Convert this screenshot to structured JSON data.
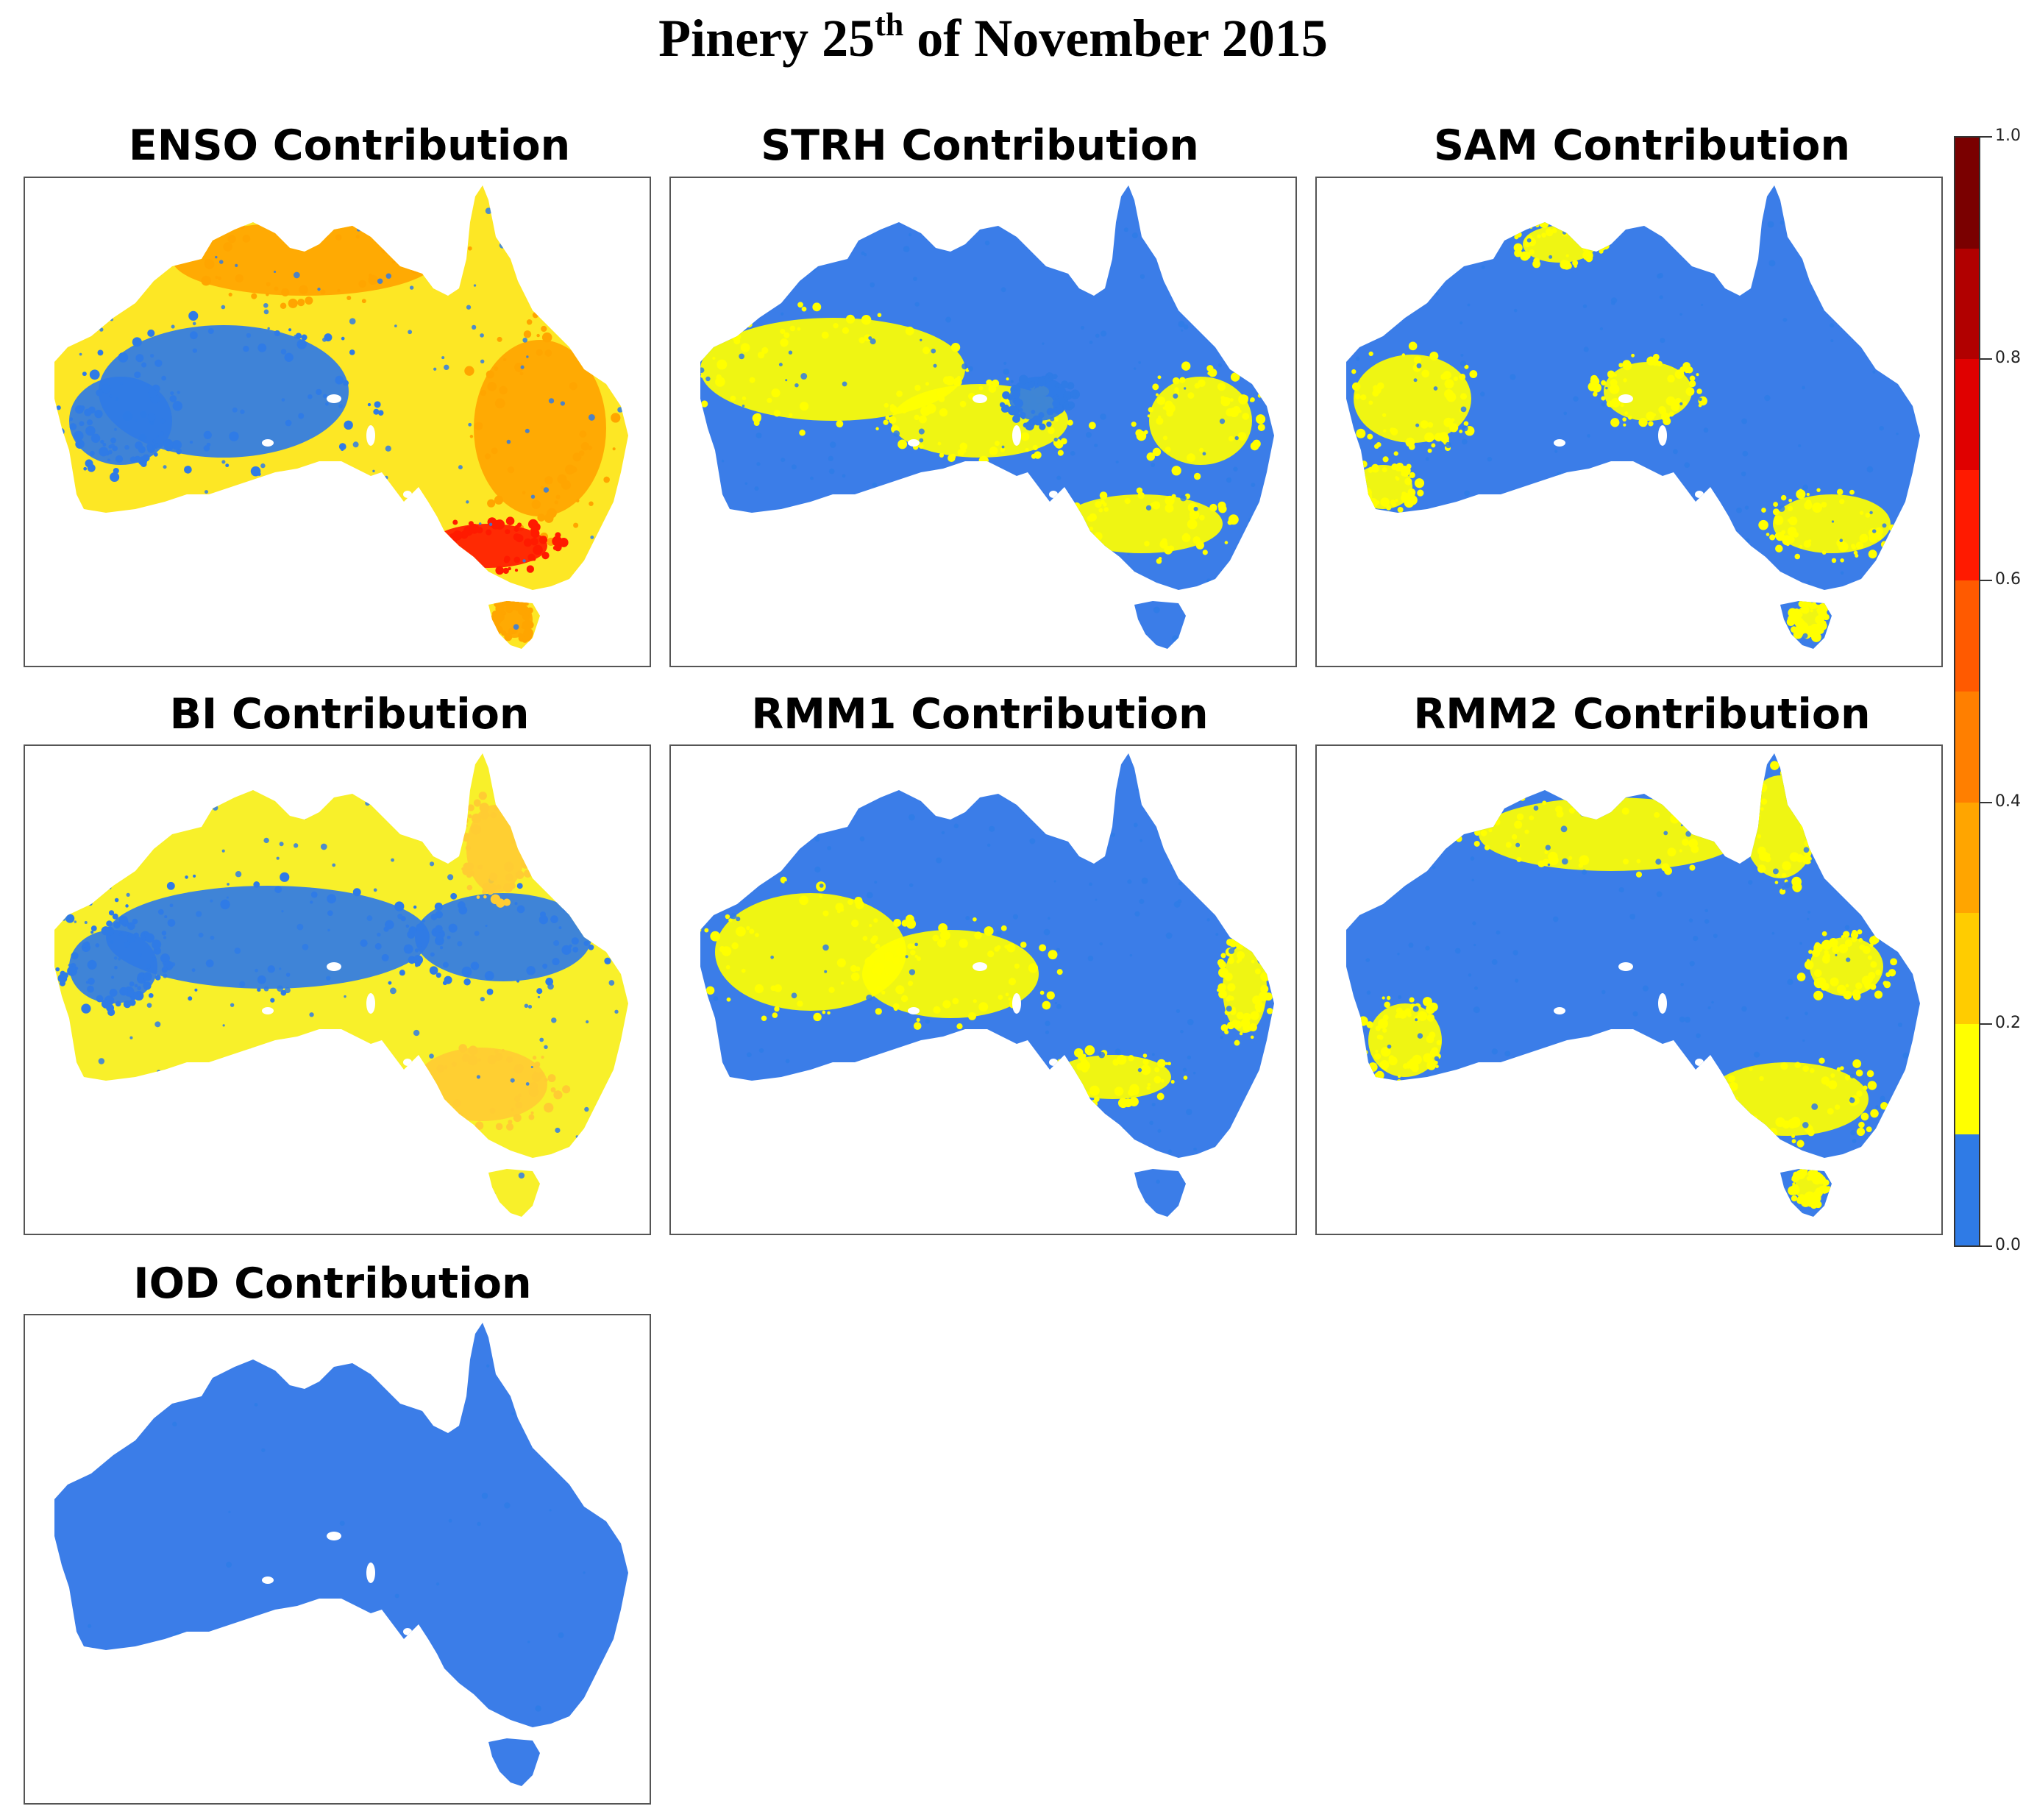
{
  "title": {
    "main": "Pinery 25",
    "sup": "th",
    "rest": " of November 2015"
  },
  "panels": [
    {
      "id": "enso",
      "title": "ENSO Contribution",
      "base": "#fde725",
      "pattern": "enso"
    },
    {
      "id": "strh",
      "title": "STRH Contribution",
      "base": "#3b7de8",
      "pattern": "strh"
    },
    {
      "id": "sam",
      "title": "SAM Contribution",
      "base": "#3b7de8",
      "pattern": "sam"
    },
    {
      "id": "bi",
      "title": "BI Contribution",
      "base": "#f8f02a",
      "pattern": "bi"
    },
    {
      "id": "rmm1",
      "title": "RMM1 Contribution",
      "base": "#3b7de8",
      "pattern": "rmm1"
    },
    {
      "id": "rmm2",
      "title": "RMM2 Contribution",
      "base": "#3b7de8",
      "pattern": "rmm2"
    },
    {
      "id": "iod",
      "title": "IOD Contribution",
      "base": "#3b7de8",
      "pattern": "iod"
    }
  ],
  "colorbar": {
    "ticks": [
      "1.0",
      "0.8",
      "0.6",
      "0.4",
      "0.2",
      "0.0"
    ],
    "bands": [
      "#7a0000",
      "#b10000",
      "#e00000",
      "#ff1a00",
      "#ff5a00",
      "#ff7f00",
      "#ffa500",
      "#ffcc00",
      "#ffff00",
      "#2f7be6"
    ]
  },
  "colors": {
    "blue": "#2f7be6",
    "yellow": "#ffff00",
    "orange": "#ffa500",
    "red": "#ff1a00"
  }
}
